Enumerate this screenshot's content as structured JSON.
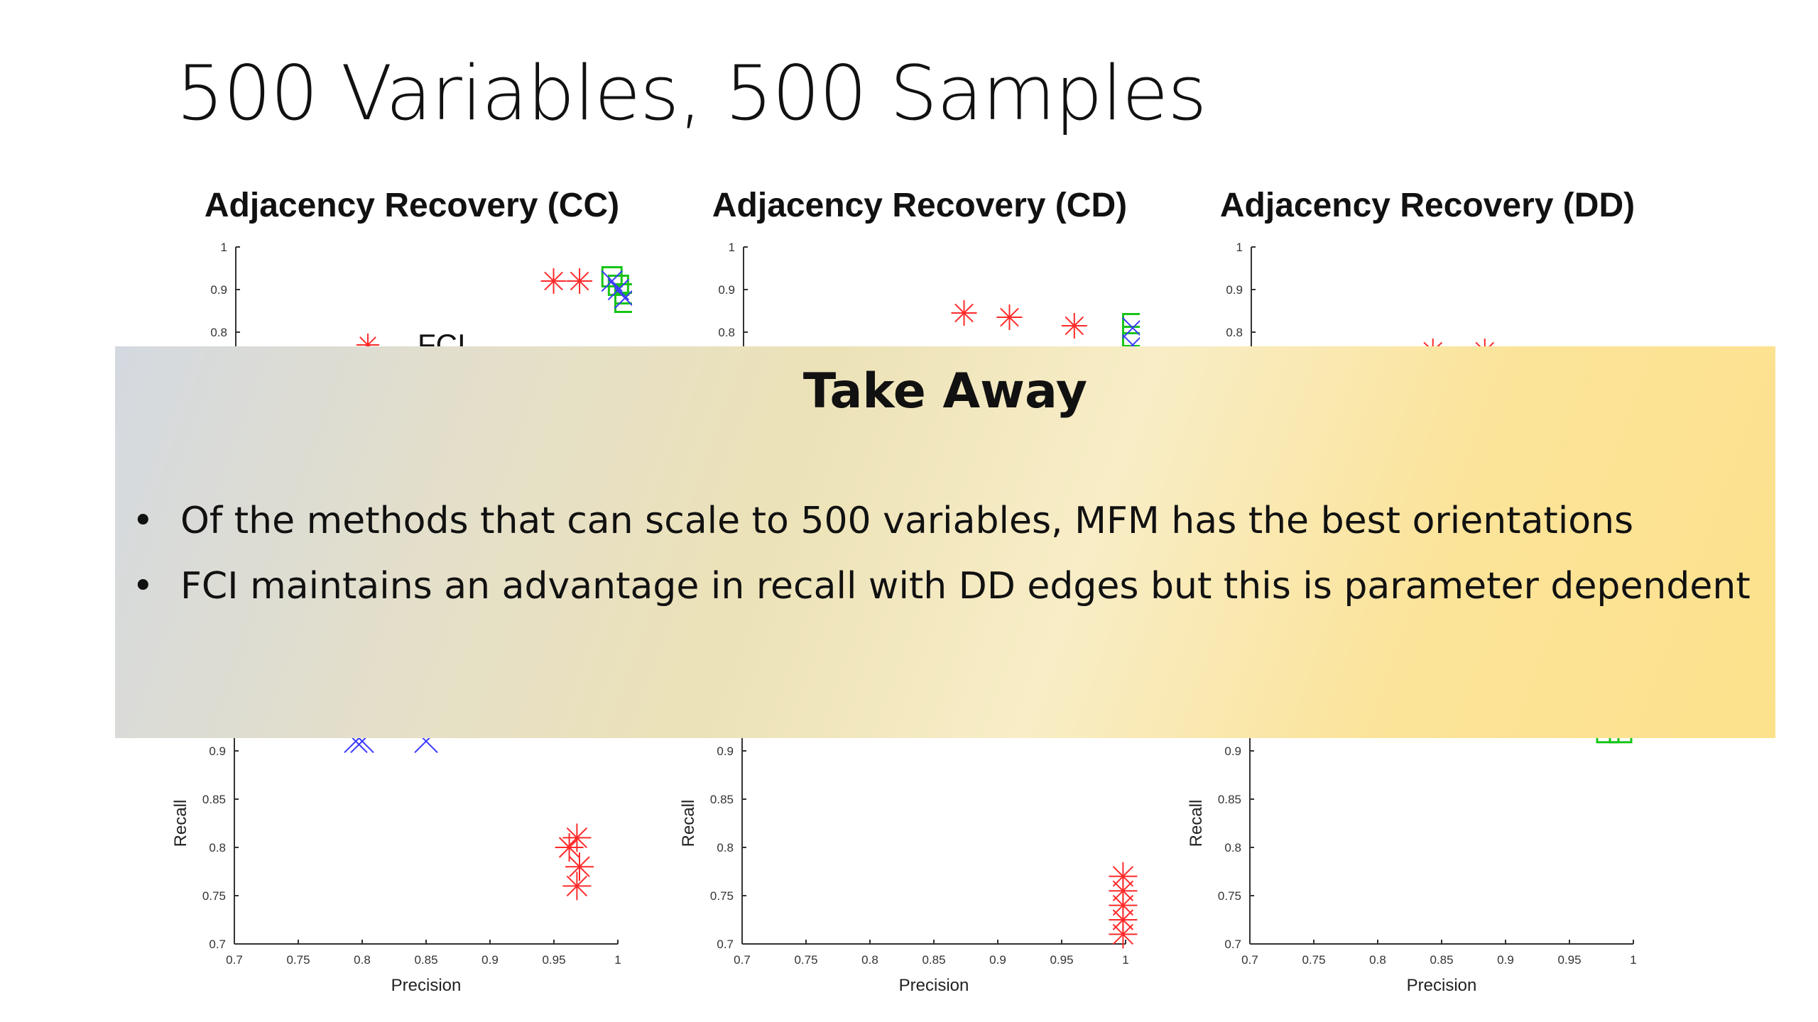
{
  "slide": {
    "title": "500 Variables, 500 Samples"
  },
  "callout": {
    "title": "Take Away",
    "bullet_glyph": "•",
    "bullets": [
      "Of the methods that can scale to 500 variables, MFM has the best orientations",
      "FCI maintains an advantage in recall with DD edges but this is parameter dependent"
    ]
  },
  "legend_visible": {
    "label": "FCI"
  },
  "colors": {
    "fci": "#ff2a2a",
    "mfm": "#3a3aff",
    "green": "#18c418"
  },
  "chart_data": [
    {
      "type": "scatter",
      "title": "Adjacency Recovery (CC)",
      "ylim": [
        0,
        1
      ],
      "yticks_visible": [
        "1",
        "0.9",
        "0.8"
      ],
      "series": [
        {
          "name": "FCI",
          "marker": "asterisk",
          "points": [
            [
              0.945,
              0.92
            ],
            [
              0.965,
              0.92
            ]
          ]
        },
        {
          "marker": "square",
          "points": [
            [
              0.99,
              0.93
            ],
            [
              0.995,
              0.91
            ],
            [
              1.0,
              0.89
            ],
            [
              1.0,
              0.87
            ]
          ]
        },
        {
          "marker": "x",
          "points": [
            [
              0.99,
              0.92
            ],
            [
              0.995,
              0.9
            ],
            [
              1.0,
              0.88
            ]
          ]
        }
      ]
    },
    {
      "type": "scatter",
      "title": "Adjacency Recovery (CD)",
      "ylim": [
        0,
        1
      ],
      "yticks_visible": [
        "1",
        "0.9",
        "0.8"
      ],
      "series": [
        {
          "marker": "asterisk",
          "points": [
            [
              0.87,
              0.845
            ],
            [
              0.905,
              0.835
            ],
            [
              0.955,
              0.815
            ]
          ]
        },
        {
          "marker": "square",
          "points": [
            [
              1.0,
              0.82
            ],
            [
              1.0,
              0.79
            ]
          ]
        },
        {
          "marker": "x",
          "points": [
            [
              1.0,
              0.81
            ],
            [
              1.0,
              0.77
            ]
          ]
        }
      ]
    },
    {
      "type": "scatter",
      "title": "Adjacency Recovery (DD)",
      "ylim": [
        0,
        1
      ],
      "yticks_visible": [
        "1",
        "0.9",
        "0.8"
      ],
      "series": [
        {
          "marker": "asterisk",
          "points": [
            [
              0.84,
              0.755
            ],
            [
              0.88,
              0.755
            ]
          ]
        }
      ]
    },
    {
      "type": "scatter",
      "xlabel": "Precision",
      "ylabel": "Recall",
      "xlim": [
        0.7,
        1
      ],
      "ylim": [
        0.7,
        1
      ],
      "xticks": [
        "0.7",
        "0.75",
        "0.8",
        "0.85",
        "0.9",
        "0.95",
        "1"
      ],
      "yticks_visible": [
        "0.9",
        "0.85",
        "0.8",
        "0.75",
        "0.7"
      ],
      "series": [
        {
          "marker": "x",
          "points": [
            [
              0.795,
              0.91
            ],
            [
              0.8,
              0.91
            ],
            [
              0.85,
              0.91
            ]
          ]
        },
        {
          "marker": "asterisk",
          "points": [
            [
              0.968,
              0.81
            ],
            [
              0.962,
              0.8
            ],
            [
              0.97,
              0.78
            ],
            [
              0.968,
              0.76
            ]
          ]
        }
      ]
    },
    {
      "type": "scatter",
      "xlabel": "Precision",
      "ylabel": "Recall",
      "xlim": [
        0.7,
        1
      ],
      "ylim": [
        0.7,
        1
      ],
      "xticks": [
        "0.7",
        "0.75",
        "0.8",
        "0.85",
        "0.9",
        "0.95",
        "1"
      ],
      "yticks_visible": [
        "0.9",
        "0.85",
        "0.8",
        "0.75",
        "0.7"
      ],
      "series": [
        {
          "marker": "asterisk",
          "points": [
            [
              0.998,
              0.77
            ],
            [
              0.998,
              0.755
            ],
            [
              0.998,
              0.74
            ],
            [
              0.998,
              0.725
            ],
            [
              0.998,
              0.71
            ]
          ]
        }
      ]
    },
    {
      "type": "scatter",
      "xlabel": "Precision",
      "ylabel": "Recall",
      "xlim": [
        0.7,
        1
      ],
      "ylim": [
        0.7,
        1
      ],
      "xticks": [
        "0.7",
        "0.75",
        "0.8",
        "0.85",
        "0.9",
        "0.95",
        "1"
      ],
      "yticks_visible": [
        "0.9",
        "0.85",
        "0.8",
        "0.75",
        "0.7"
      ],
      "series": [
        {
          "marker": "square",
          "points": [
            [
              0.98,
              0.92
            ],
            [
              0.99,
              0.92
            ]
          ]
        }
      ]
    }
  ]
}
